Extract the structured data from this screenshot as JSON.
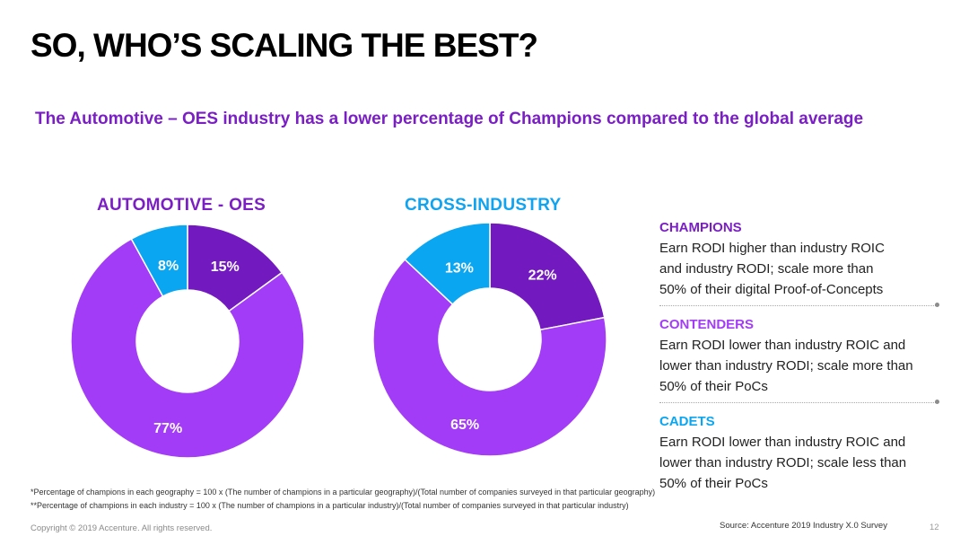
{
  "title": "SO, WHO’S SCALING THE BEST?",
  "subtitle": "The Automotive – OES industry has a lower percentage of Champions compared to the global average",
  "colors": {
    "champions": "#7219c0",
    "contenders": "#a23cf7",
    "cadets": "#0aa6f2",
    "title_purple": "#7a1fc4",
    "title_blue": "#0fa3f0"
  },
  "chart_data": [
    {
      "type": "pie",
      "title": "AUTOMOTIVE - OES",
      "donut": true,
      "categories": [
        "CHAMPIONS",
        "CONTENDERS",
        "CADETS"
      ],
      "values": [
        15,
        77,
        8
      ],
      "labels": [
        "15%",
        "77%",
        "8%"
      ]
    },
    {
      "type": "pie",
      "title": "CROSS-INDUSTRY",
      "donut": true,
      "categories": [
        "CHAMPIONS",
        "CONTENDERS",
        "CADETS"
      ],
      "values": [
        22,
        65,
        13
      ],
      "labels": [
        "22%",
        "65%",
        "13%"
      ]
    }
  ],
  "legend": [
    {
      "name": "CHAMPIONS",
      "lines": [
        "Earn RODI higher than industry ROIC",
        "and industry RODI; scale more than",
        "50% of their digital Proof-of-Concepts"
      ]
    },
    {
      "name": "CONTENDERS",
      "lines": [
        "Earn RODI lower than industry ROIC and",
        "lower than industry RODI; scale more than",
        "50% of their PoCs"
      ]
    },
    {
      "name": "CADETS",
      "lines": [
        "Earn RODI lower than industry ROIC and",
        "lower than industry RODI; scale less than",
        "50% of their PoCs"
      ]
    }
  ],
  "footnotes": [
    "*Percentage of champions in each geography = 100 x (The number of champions in a particular geography)/(Total number of companies surveyed in that particular geography)",
    "**Percentage of champions in each industry = 100 x (The number of champions in a particular industry)/(Total number of companies surveyed in that particular industry)"
  ],
  "copyright": "Copyright © 2019 Accenture. All rights reserved.",
  "source": "Source: Accenture 2019 Industry X.0 Survey",
  "page_number": "12"
}
